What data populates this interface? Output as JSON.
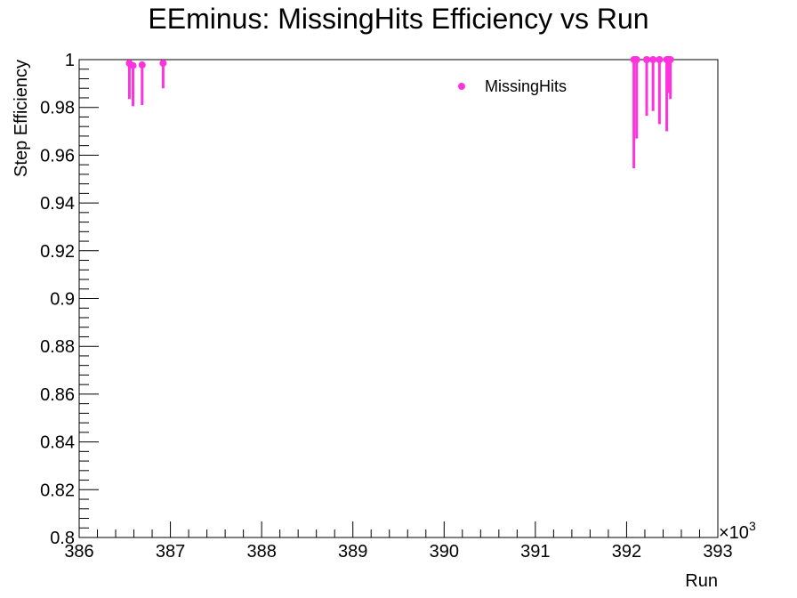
{
  "chart_data": {
    "type": "scatter",
    "title": "EEminus: MissingHits Efficiency vs Run",
    "xlabel": "Run",
    "ylabel": "Step Efficiency",
    "x_exponent_label": "×10",
    "x_exponent_power": "3",
    "xlim": [
      386,
      393
    ],
    "ylim": [
      0.8,
      1.0
    ],
    "x_ticks": [
      386,
      387,
      388,
      389,
      390,
      391,
      392,
      393
    ],
    "y_ticks": [
      0.8,
      0.82,
      0.84,
      0.86,
      0.88,
      0.9,
      0.92,
      0.94,
      0.96,
      0.98,
      1.0
    ],
    "x_tick_labels": [
      "386",
      "387",
      "388",
      "389",
      "390",
      "391",
      "392",
      "393"
    ],
    "y_tick_labels": [
      "0.8",
      "0.82",
      "0.84",
      "0.86",
      "0.88",
      "0.9",
      "0.92",
      "0.94",
      "0.96",
      "0.98",
      "1"
    ],
    "grid": false,
    "legend_position": "top-right",
    "color": "#ff33dd",
    "series": [
      {
        "name": "MissingHits",
        "points": [
          {
            "x": 386.55,
            "y": 0.9985,
            "err_low": 0.015
          },
          {
            "x": 386.59,
            "y": 0.9975,
            "err_low": 0.017
          },
          {
            "x": 386.69,
            "y": 0.9978,
            "err_low": 0.0168
          },
          {
            "x": 386.92,
            "y": 0.9985,
            "err_low": 0.0105
          },
          {
            "x": 392.08,
            "y": 1.0,
            "err_low": 0.0455
          },
          {
            "x": 392.11,
            "y": 1.0,
            "err_low": 0.033
          },
          {
            "x": 392.22,
            "y": 1.0,
            "err_low": 0.0235
          },
          {
            "x": 392.29,
            "y": 1.0,
            "err_low": 0.0215
          },
          {
            "x": 392.36,
            "y": 1.0,
            "err_low": 0.027
          },
          {
            "x": 392.44,
            "y": 1.0,
            "err_low": 0.03
          },
          {
            "x": 392.46,
            "y": 1.0,
            "err_low": 0.014
          },
          {
            "x": 392.48,
            "y": 1.0,
            "err_low": 0.0165
          }
        ]
      }
    ]
  }
}
